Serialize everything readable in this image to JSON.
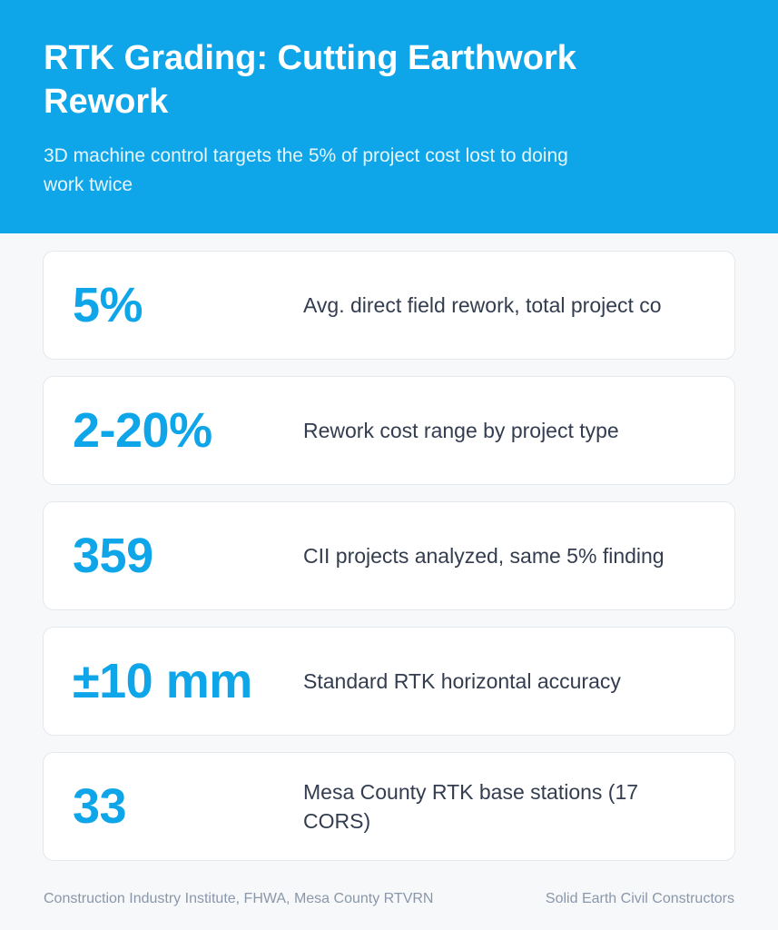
{
  "header": {
    "title": "RTK Grading: Cutting Earthwork Rework",
    "subtitle": "3D machine control targets the 5% of project cost lost to doing work twice"
  },
  "stats": [
    {
      "value": "5%",
      "label": "Avg. direct field rework, total project co"
    },
    {
      "value": "2-20%",
      "label": "Rework cost range by project type"
    },
    {
      "value": "359",
      "label": "CII projects analyzed, same 5% finding"
    },
    {
      "value": "±10 mm",
      "label": "Standard RTK horizontal accuracy"
    },
    {
      "value": "33",
      "label": "Mesa County RTK base stations (17 CORS)"
    }
  ],
  "footer": {
    "sources": "Construction Industry Institute, FHWA, Mesa County RTVRN",
    "brand": "Solid Earth Civil Constructors"
  },
  "colors": {
    "accent": "#0ea5e9",
    "background": "#f7f8fa",
    "card": "#ffffff",
    "text": "#333d4f",
    "muted": "#8a97ab"
  }
}
